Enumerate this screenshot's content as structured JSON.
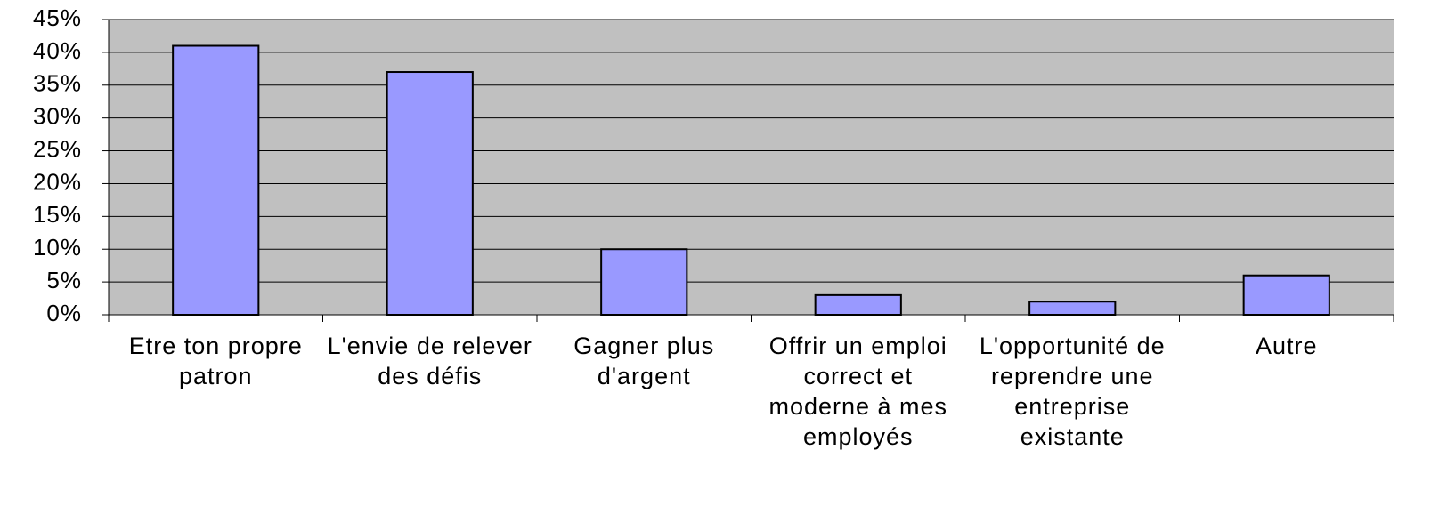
{
  "chart_data": {
    "type": "bar",
    "categories": [
      "Etre ton propre patron",
      "L'envie de relever des défis",
      "Gagner plus d'argent",
      "Offrir un emploi correct et moderne à mes employés",
      "L'opportunité de reprendre une entreprise existante",
      "Autre"
    ],
    "values": [
      41,
      37,
      10,
      3,
      2,
      6
    ],
    "color": "#9999ff",
    "ylim": [
      0,
      45
    ],
    "yticks": [
      {
        "value": 0,
        "label": "0%"
      },
      {
        "value": 5,
        "label": "5%"
      },
      {
        "value": 10,
        "label": "10%"
      },
      {
        "value": 15,
        "label": "15%"
      },
      {
        "value": 20,
        "label": "20%"
      },
      {
        "value": 25,
        "label": "25%"
      },
      {
        "value": 30,
        "label": "30%"
      },
      {
        "value": 35,
        "label": "35%"
      },
      {
        "value": 40,
        "label": "40%"
      },
      {
        "value": 45,
        "label": "45%"
      }
    ],
    "grid": true
  }
}
